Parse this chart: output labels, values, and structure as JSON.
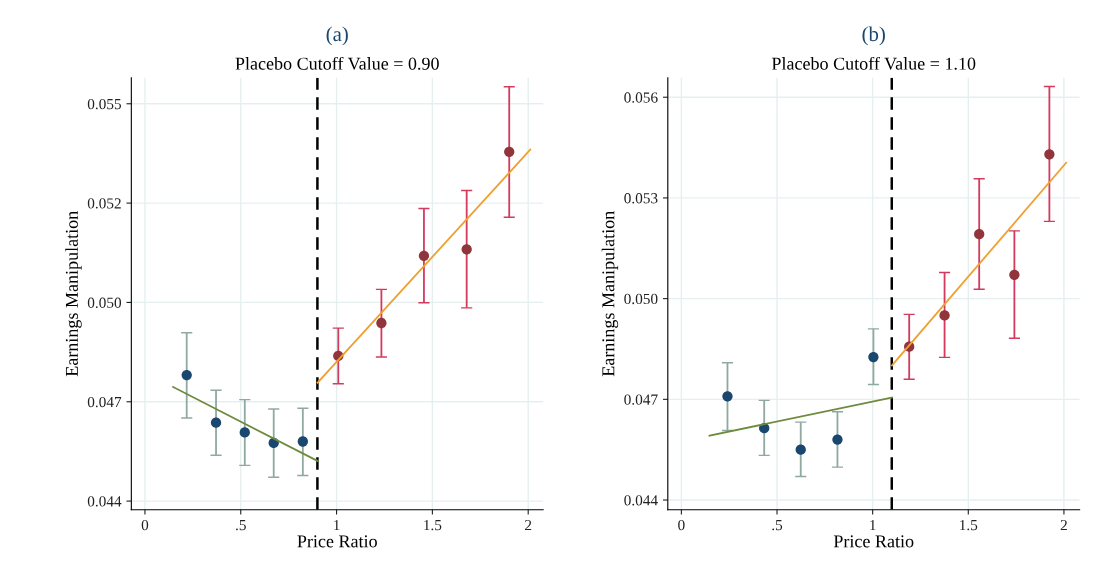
{
  "chart_data": [
    {
      "type": "scatter",
      "title": "(a)",
      "subtitle": "Placebo Cutoff Value = 0.90",
      "xlabel": "Price Ratio",
      "ylabel": "Earnings Manipulation",
      "xlim": [
        -0.071,
        2.078
      ],
      "ylim": [
        0.04376,
        0.05572
      ],
      "xticks": [
        {
          "value": 0,
          "label": "0"
        },
        {
          "value": 0.5,
          "label": ".5"
        },
        {
          "value": 1,
          "label": "1"
        },
        {
          "value": 1.5,
          "label": "1.5"
        },
        {
          "value": 2,
          "label": "2"
        }
      ],
      "yticks": [
        {
          "value": 0.044,
          "label": "0.044"
        },
        {
          "value": 0.04675,
          "label": "0.047"
        },
        {
          "value": 0.0495,
          "label": "0.050"
        },
        {
          "value": 0.05225,
          "label": "0.052"
        },
        {
          "value": 0.055,
          "label": "0.055"
        }
      ],
      "grid": true,
      "legend": false,
      "ref_lines": [
        {
          "axis": "x",
          "value": 0.9,
          "label": null,
          "color": "#000000",
          "line_style": "dashed"
        }
      ],
      "series": [
        {
          "marker": "circle",
          "color": "#1a476f",
          "x": [
            0.218,
            0.371,
            0.521,
            0.672,
            0.824
          ],
          "values": [
            0.04749,
            0.04617,
            0.0459,
            0.04561,
            0.04565
          ],
          "errors": [
            [
              0.0463,
              0.04866
            ],
            [
              0.04527,
              0.04707
            ],
            [
              0.04499,
              0.04681
            ],
            [
              0.04466,
              0.04655
            ],
            [
              0.04471,
              0.04657
            ]
          ]
        },
        {
          "marker": "circle",
          "color": "#90353b",
          "x": [
            1.009,
            1.234,
            1.456,
            1.679,
            1.901
          ],
          "values": [
            0.04802,
            0.04893,
            0.05079,
            0.05097,
            0.05367
          ],
          "errors": [
            [
              0.04725,
              0.04879
            ],
            [
              0.04799,
              0.04986
            ],
            [
              0.04949,
              0.0521
            ],
            [
              0.04935,
              0.0526
            ],
            [
              0.05186,
              0.05547
            ]
          ]
        },
        {
          "type": "line",
          "color": "#6e8b3d",
          "x": [
            0.147,
            0.901
          ],
          "values": [
            0.04716,
            0.04511
          ]
        },
        {
          "type": "line",
          "color": "#f0a030",
          "x": [
            0.901,
            2.011
          ],
          "values": [
            0.04728,
            0.05373
          ]
        }
      ]
    },
    {
      "type": "scatter",
      "title": "(b)",
      "subtitle": "Placebo Cutoff Value = 1.10",
      "xlabel": "Price Ratio",
      "ylabel": "Earnings Manipulation",
      "xlim": [
        -0.071,
        2.082
      ],
      "ylim": [
        0.04371,
        0.05658
      ],
      "xticks": [
        {
          "value": 0,
          "label": "0"
        },
        {
          "value": 0.5,
          "label": ".5"
        },
        {
          "value": 1,
          "label": "1"
        },
        {
          "value": 1.5,
          "label": "1.5"
        },
        {
          "value": 2,
          "label": "2"
        }
      ],
      "yticks": [
        {
          "value": 0.044,
          "label": "0.044"
        },
        {
          "value": 0.047,
          "label": "0.047"
        },
        {
          "value": 0.05,
          "label": "0.050"
        },
        {
          "value": 0.053,
          "label": "0.053"
        },
        {
          "value": 0.056,
          "label": "0.056"
        }
      ],
      "grid": true,
      "legend": false,
      "ref_lines": [
        {
          "axis": "x",
          "value": 1.1,
          "label": null,
          "color": "#000000",
          "line_style": "dashed"
        }
      ],
      "series": [
        {
          "marker": "circle",
          "color": "#1a476f",
          "x": [
            0.241,
            0.433,
            0.624,
            0.816,
            1.004
          ],
          "values": [
            0.04709,
            0.04614,
            0.0455,
            0.0458,
            0.04826
          ],
          "errors": [
            [
              0.04607,
              0.04809
            ],
            [
              0.04533,
              0.04697
            ],
            [
              0.0447,
              0.04632
            ],
            [
              0.04498,
              0.04663
            ],
            [
              0.04744,
              0.0491
            ]
          ]
        },
        {
          "marker": "circle",
          "color": "#90353b",
          "x": [
            1.191,
            1.376,
            1.557,
            1.741,
            1.924
          ],
          "values": [
            0.04857,
            0.0495,
            0.05192,
            0.05071,
            0.0543
          ],
          "errors": [
            [
              0.0476,
              0.04953
            ],
            [
              0.04825,
              0.05078
            ],
            [
              0.05028,
              0.05357
            ],
            [
              0.04882,
              0.05202
            ],
            [
              0.0523,
              0.05632
            ]
          ]
        },
        {
          "type": "line",
          "color": "#6e8b3d",
          "x": [
            0.147,
            1.101
          ],
          "values": [
            0.04592,
            0.04705
          ]
        },
        {
          "type": "line",
          "color": "#f0a030",
          "x": [
            1.101,
            2.012
          ],
          "values": [
            0.04801,
            0.05405
          ]
        }
      ]
    }
  ]
}
